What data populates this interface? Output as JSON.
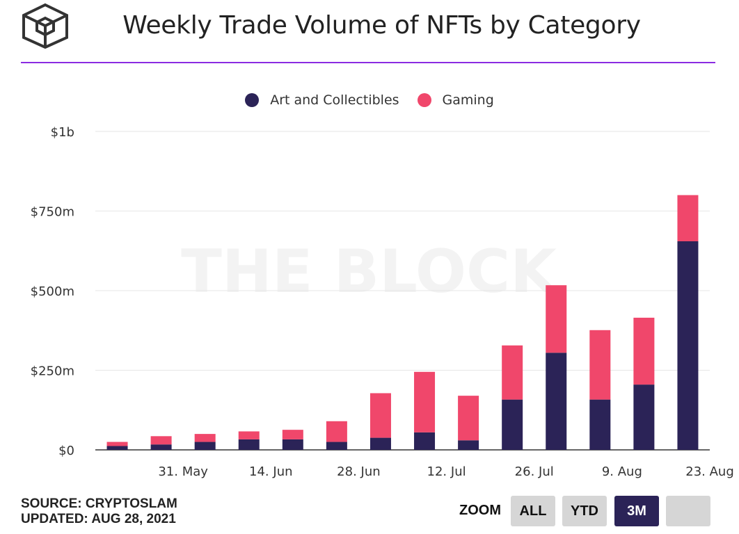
{
  "header": {
    "title": "Weekly Trade Volume of NFTs by Category",
    "logo_icon": "the-block-cube-logo"
  },
  "watermark": "THE BLOCK",
  "colors": {
    "art": "#2b2357",
    "gaming": "#f0476b",
    "accent_rule": "#8a2be2"
  },
  "legend": [
    {
      "label": "Art and Collectibles",
      "color": "#2b2357"
    },
    {
      "label": "Gaming",
      "color": "#f0476b"
    }
  ],
  "chart_data": {
    "type": "bar",
    "stacked": true,
    "title": "Weekly Trade Volume of NFTs by Category",
    "xlabel": "",
    "ylabel": "",
    "ylim": [
      0,
      1000
    ],
    "y_unit": "millions USD",
    "y_ticks": [
      0,
      250,
      500,
      750,
      1000
    ],
    "y_tick_labels": [
      "$0",
      "$250m",
      "$500m",
      "$750m",
      "$1b"
    ],
    "x_tick_labels": [
      "31. May",
      "14. Jun",
      "28. Jun",
      "12. Jul",
      "26. Jul",
      "9. Aug",
      "23. Aug"
    ],
    "x_tick_after_bar": [
      1,
      3,
      5,
      7,
      9,
      11,
      13
    ],
    "grid": true,
    "legend_position": "top",
    "series": [
      {
        "name": "Art and Collectibles",
        "values": [
          12,
          17,
          25,
          33,
          33,
          25,
          38,
          55,
          30,
          158,
          305,
          158,
          205,
          655
        ]
      },
      {
        "name": "Gaming",
        "values": [
          13,
          26,
          25,
          25,
          30,
          65,
          140,
          190,
          140,
          170,
          212,
          218,
          210,
          145
        ]
      }
    ]
  },
  "footer": {
    "source": "SOURCE: CRYPTOSLAM",
    "updated": "UPDATED: AUG 28, 2021"
  },
  "zoom": {
    "label": "ZOOM",
    "buttons": [
      "ALL",
      "YTD",
      "3M",
      ""
    ],
    "selected": "3M"
  }
}
